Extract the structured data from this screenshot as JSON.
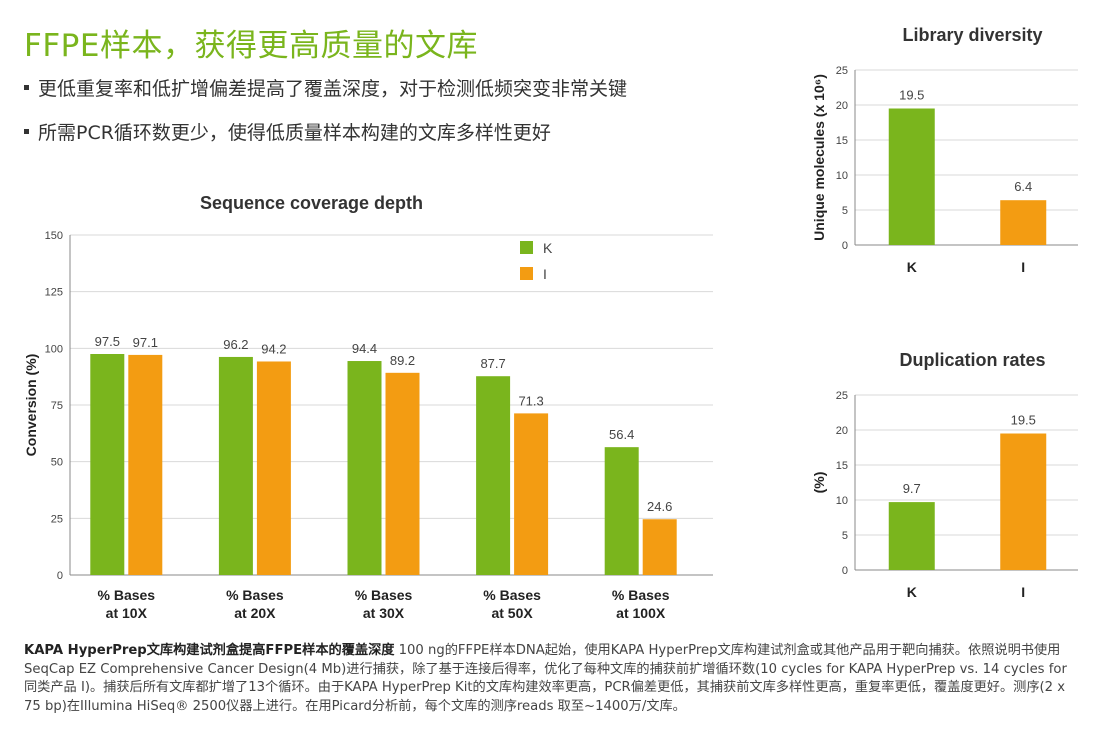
{
  "headline": "FFPE样本，获得更高质量的文库",
  "bullets": [
    "更低重复率和低扩增偏差提高了覆盖深度，对于检测低频突变非常关键",
    "所需PCR循环数更少，使得低质量样本构建的文库多样性更好"
  ],
  "colors": {
    "K": "#7ab51d",
    "I": "#f39c12",
    "headline": "#7ab51d",
    "grid": "#d9d9d9"
  },
  "chart_data": [
    {
      "type": "bar",
      "title": "Sequence coverage depth",
      "ylabel": "Conversion (%)",
      "xlabel": "",
      "ylim": [
        0,
        150
      ],
      "yticks": [
        0,
        25,
        50,
        75,
        100,
        125,
        150
      ],
      "categories": [
        [
          "% Bases",
          "at 10X"
        ],
        [
          "% Bases",
          "at 20X"
        ],
        [
          "% Bases",
          "at 30X"
        ],
        [
          "% Bases",
          "at 50X"
        ],
        [
          "% Bases",
          "at 100X"
        ]
      ],
      "series": [
        {
          "name": "K",
          "values": [
            97.5,
            96.2,
            94.4,
            87.7,
            56.4
          ]
        },
        {
          "name": "I",
          "values": [
            97.1,
            94.2,
            89.2,
            71.3,
            24.6
          ]
        }
      ],
      "legend": "top-right",
      "grid": true
    },
    {
      "type": "bar",
      "title": "Library diversity",
      "ylabel": "Unique molecules (x 10⁶)",
      "xlabel": "",
      "ylim": [
        0,
        25
      ],
      "yticks": [
        0,
        5,
        10,
        15,
        20,
        25
      ],
      "categories": [
        "K",
        "I"
      ],
      "values": [
        19.5,
        6.4
      ],
      "grid": true
    },
    {
      "type": "bar",
      "title": "Duplication rates",
      "ylabel": "(%)",
      "xlabel": "",
      "ylim": [
        0,
        25
      ],
      "yticks": [
        0,
        5,
        10,
        15,
        20,
        25
      ],
      "categories": [
        "K",
        "I"
      ],
      "values": [
        9.7,
        19.5
      ],
      "grid": true
    }
  ],
  "caption": {
    "bold": "KAPA HyperPrep文库构建试剂盒提高FFPE样本的覆盖深度",
    "text": " 100 ng的FFPE样本DNA起始，使用KAPA HyperPrep文库构建试剂盒或其他产品用于靶向捕获。依照说明书使用SeqCap EZ Comprehensive Cancer Design(4 Mb)进行捕获，除了基于连接后得率，优化了每种文库的捕获前扩增循环数(10 cycles for KAPA HyperPrep vs. 14 cycles for 同类产品 I)。捕获后所有文库都扩增了13个循环。由于KAPA HyperPrep Kit的文库构建效率更高，PCR偏差更低，其捕获前文库多样性更高，重复率更低，覆盖度更好。测序(2 x 75 bp)在Illumina HiSeq® 2500仪器上进行。在用Picard分析前，每个文库的测序reads 取至~1400万/文库。"
  }
}
